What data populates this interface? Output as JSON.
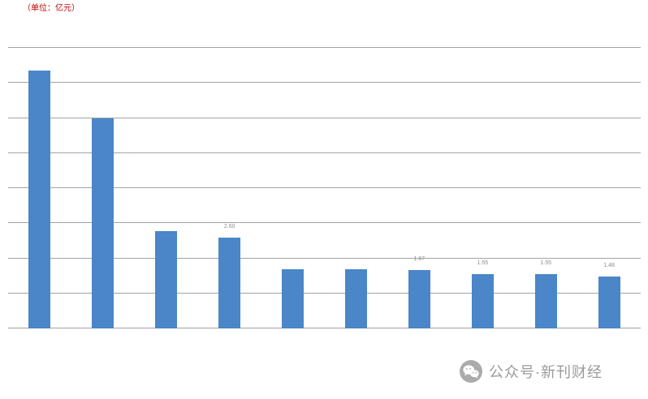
{
  "chart": {
    "title": "（单位：亿元）"
  },
  "chart_data": {
    "type": "bar",
    "title": "（单位：亿元）",
    "categories": [
      "",
      "",
      "",
      "",
      "",
      "",
      "",
      "",
      "",
      ""
    ],
    "values": [
      7.35,
      6.0,
      2.78,
      2.6,
      1.69,
      1.69,
      1.67,
      1.55,
      1.55,
      1.48
    ],
    "labels": [
      "",
      "",
      "",
      "2.60",
      "",
      "",
      "1.67",
      "1.55",
      "1.55",
      "1.48"
    ],
    "xlabel": "",
    "ylabel": "",
    "ylim": [
      0,
      8
    ],
    "gridline_interval": 1,
    "grid": "on",
    "legend": "none",
    "tick_labels_visible": false,
    "bar_color": "#4a86c8",
    "gridline_color": "#a3a3a3",
    "background": "#ffffff"
  },
  "watermark": {
    "icon": "wechat-icon",
    "text": "公众号·新刊财经",
    "color": "#9b9b9b"
  }
}
